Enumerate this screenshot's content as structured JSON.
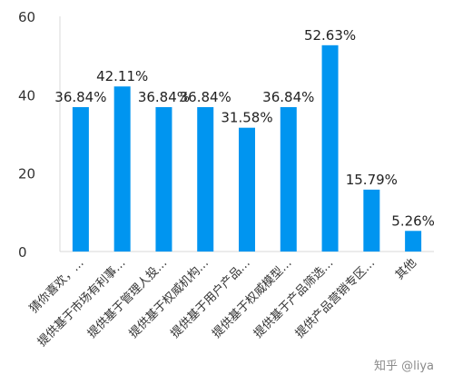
{
  "chart_data": {
    "type": "bar",
    "categories": [
      "猜你喜欢，…",
      "提供基于市场有利事…",
      "提供基于管理人投…",
      "提供基于权威机构…",
      "提供基于用户产品…",
      "提供基于权威模型…",
      "提供基于产品筛选…",
      "提供产品营销专区…",
      "其他"
    ],
    "values": [
      36.84,
      42.11,
      36.84,
      36.84,
      31.58,
      36.84,
      52.63,
      15.79,
      5.26
    ],
    "value_labels": [
      "36.84%",
      "42.11%",
      "36.84%",
      "36.84%",
      "31.58%",
      "36.84%",
      "52.63%",
      "15.79%",
      "5.26%"
    ],
    "y_ticks": [
      0,
      20,
      40,
      60
    ],
    "ylim": [
      0,
      60
    ],
    "bar_color": "#0095f0",
    "grid": false,
    "title": "",
    "xlabel": "",
    "ylabel": ""
  },
  "watermark": "知乎 @liya"
}
